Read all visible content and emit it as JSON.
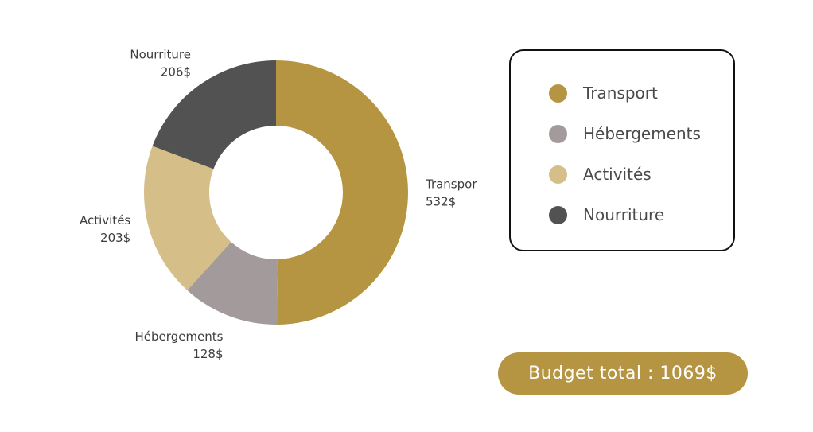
{
  "chart_data": {
    "type": "pie",
    "variant": "donut",
    "categories": [
      "Transport",
      "Hébergements",
      "Activités",
      "Nourriture"
    ],
    "values": [
      532,
      128,
      203,
      206
    ],
    "value_labels": [
      "532$",
      "128$",
      "203$",
      "206$"
    ],
    "colors": [
      "#b59542",
      "#a39b9b",
      "#d5be87",
      "#525252"
    ],
    "legend_placement": "right",
    "total_label": "Budget total : 1069$"
  },
  "accent_color": "#b59542"
}
